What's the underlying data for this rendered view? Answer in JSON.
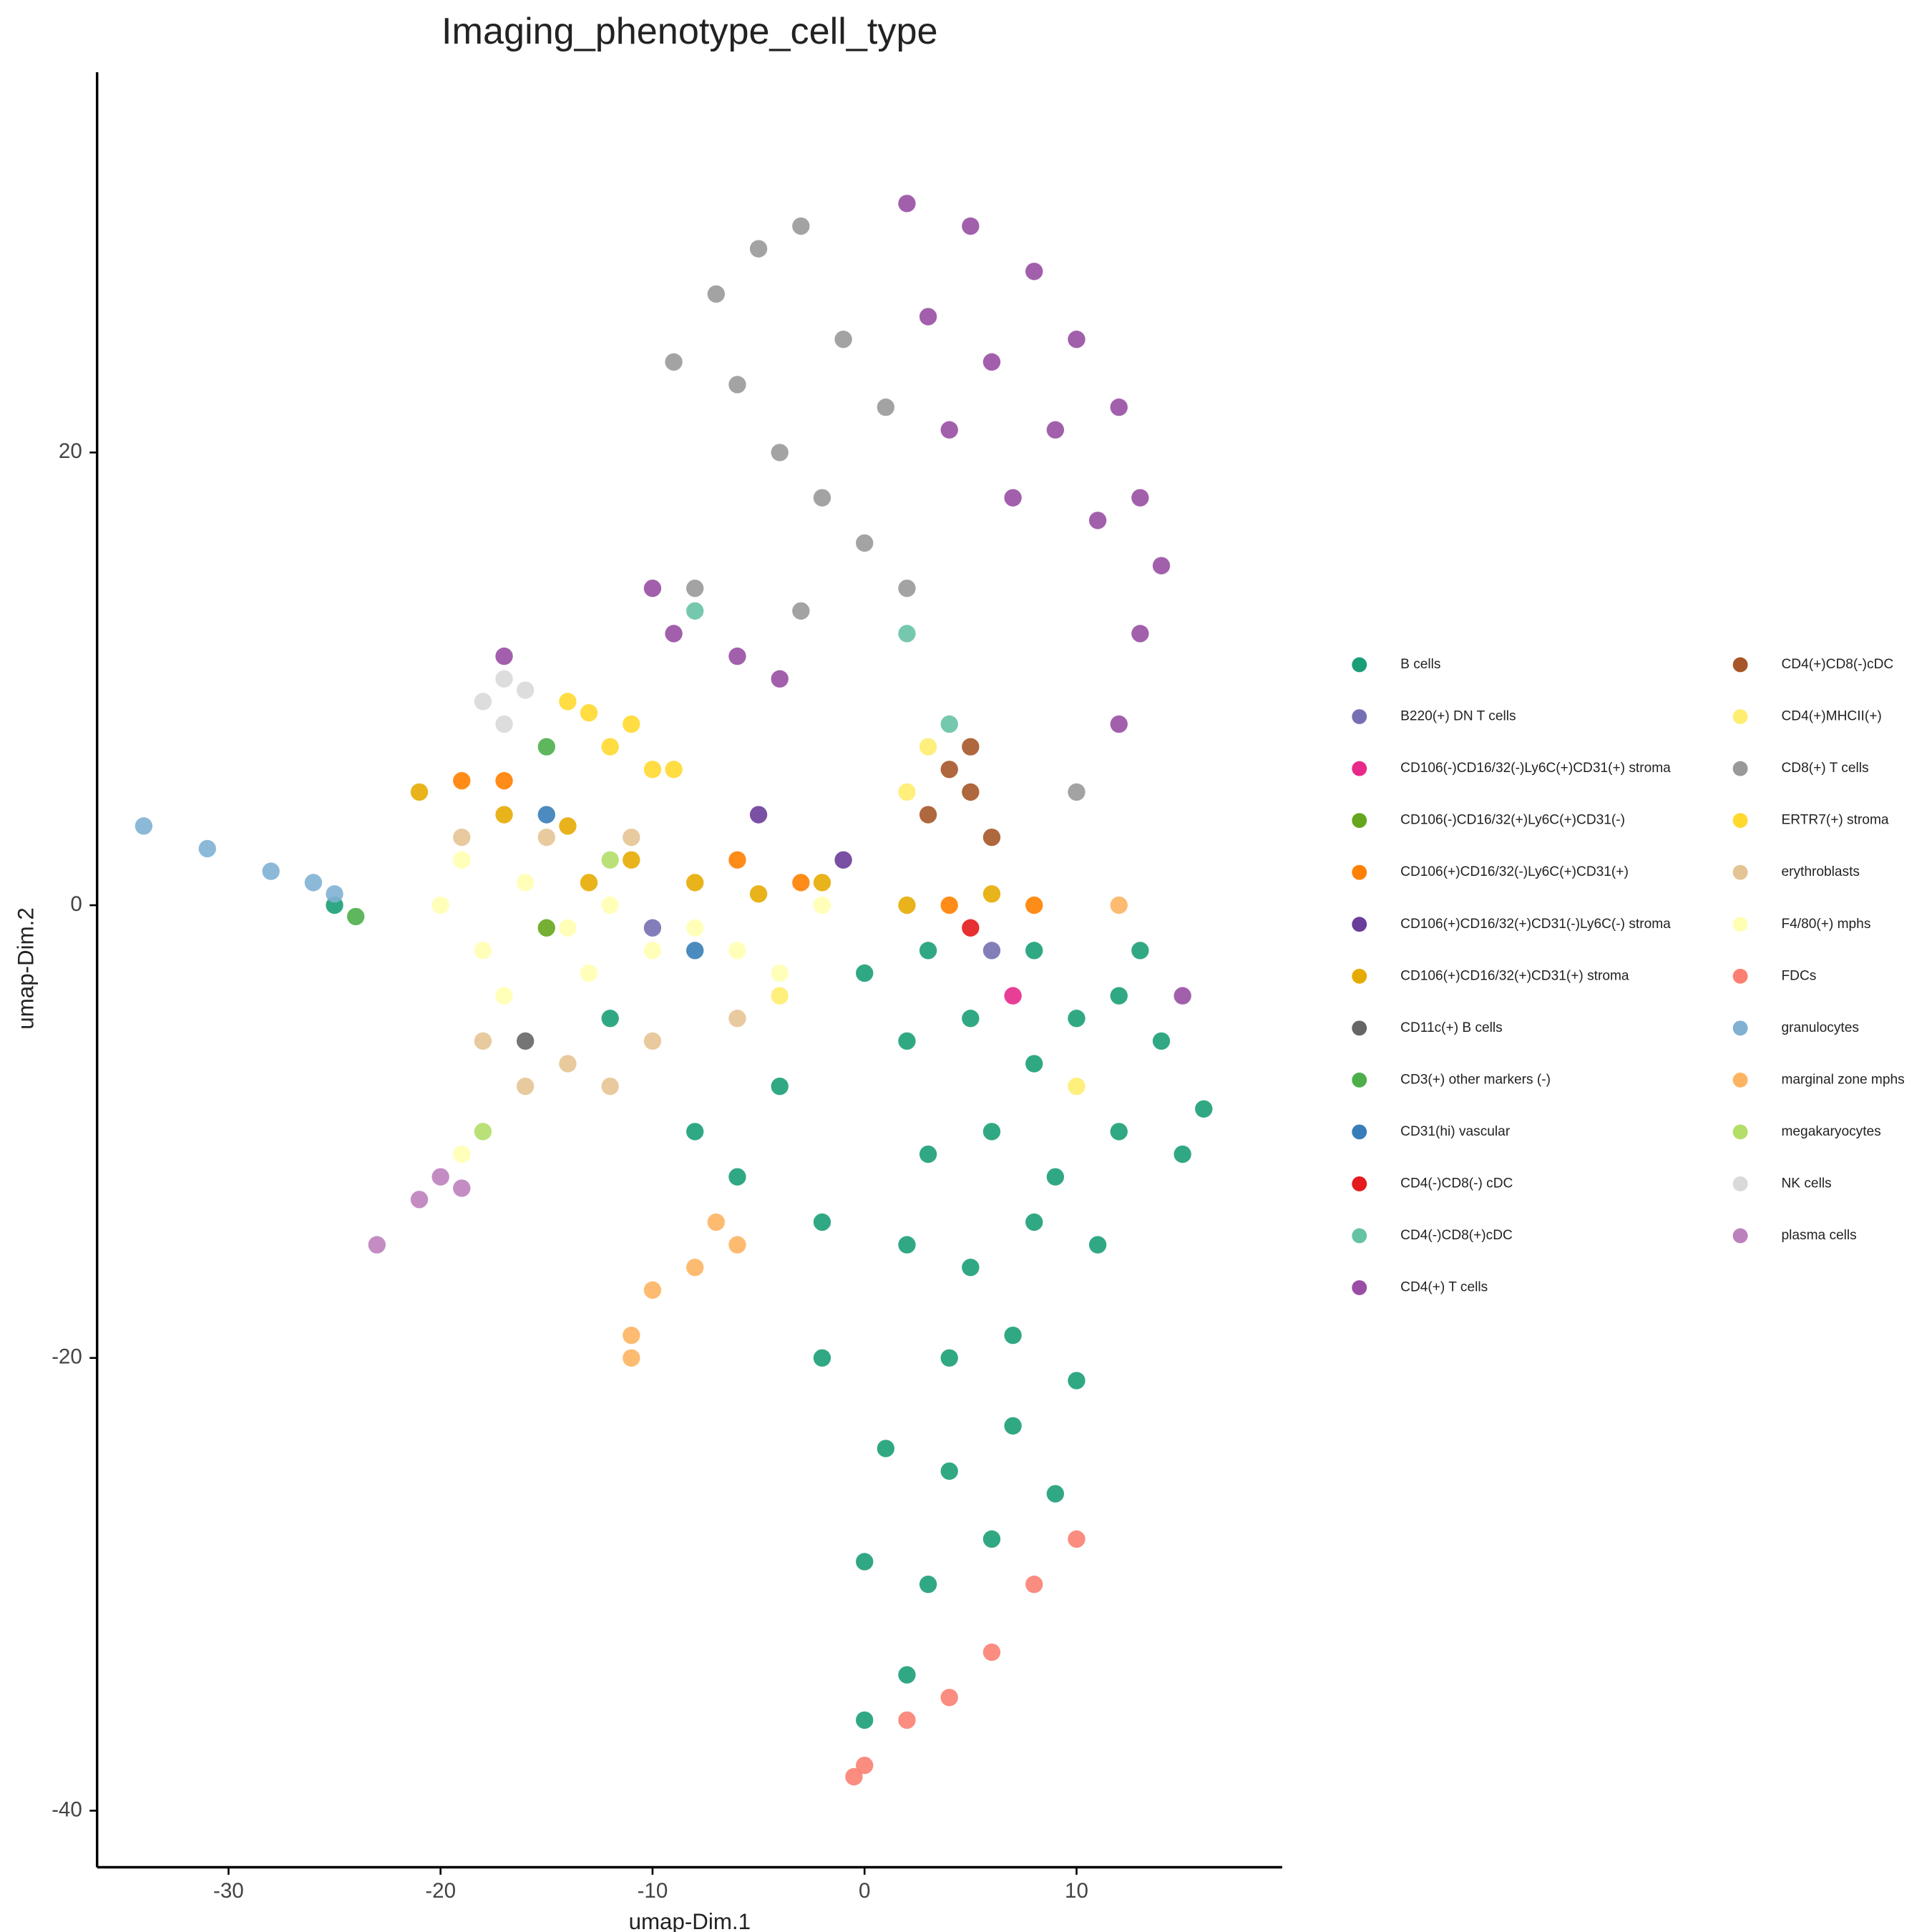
{
  "chart_data": {
    "type": "scatter",
    "title": "Imaging_phenotype_cell_type",
    "x_label": "umap-Dim.1",
    "y_label": "umap-Dim.2",
    "xlim": [
      -36.2,
      19.7
    ],
    "ylim": [
      -42.5,
      36.8
    ],
    "xticks": [
      -30,
      -20,
      -10,
      0,
      10
    ],
    "yticks": [
      -40,
      -20,
      0,
      20
    ],
    "grid": false,
    "legend": "right",
    "series": [
      {
        "name": "B cells",
        "color": "#1b9e77",
        "x": [
          2,
          5,
          8,
          10,
          12,
          14,
          16,
          3,
          6,
          9,
          12,
          15,
          -2,
          2,
          5,
          8,
          11,
          4,
          7,
          10,
          1,
          4,
          7,
          9,
          0,
          3,
          6,
          2,
          0,
          -8,
          -12,
          -4,
          0,
          -6,
          -2,
          -25,
          3,
          8,
          13
        ],
        "y": [
          -6,
          -5,
          -7,
          -5,
          -4,
          -6,
          -9,
          -11,
          -10,
          -12,
          -10,
          -11,
          -14,
          -15,
          -16,
          -14,
          -15,
          -20,
          -19,
          -21,
          -24,
          -25,
          -23,
          -26,
          -29,
          -30,
          -28,
          -34,
          -36,
          -10,
          -5,
          -8,
          -3,
          -12,
          -20,
          0,
          -2,
          -2,
          -2
        ]
      },
      {
        "name": "B220(+) DN T cells",
        "color": "#7570b3",
        "x": [
          6,
          -10
        ],
        "y": [
          -2,
          -1
        ]
      },
      {
        "name": "CD106(-)CD16/32(-)Ly6C(+)CD31(+) stroma",
        "color": "#e7298a",
        "x": [
          7
        ],
        "y": [
          -4
        ]
      },
      {
        "name": "CD106(-)CD16/32(+)Ly6C(+)CD31(-)",
        "color": "#66a61e",
        "x": [
          -15
        ],
        "y": [
          -1
        ]
      },
      {
        "name": "CD106(+)CD16/32(-)Ly6C(+)CD31(+)",
        "color": "#ff7f00",
        "x": [
          -19,
          -17,
          -6,
          -3,
          4,
          8
        ],
        "y": [
          5.5,
          5.5,
          2,
          1,
          0,
          0
        ]
      },
      {
        "name": "CD106(+)CD16/32(+)CD31(-)Ly6C(-) stroma",
        "color": "#6a3d9a",
        "x": [
          -5,
          -1
        ],
        "y": [
          4,
          2
        ]
      },
      {
        "name": "CD106(+)CD16/32(+)CD31(+) stroma",
        "color": "#e6ab02",
        "x": [
          -17,
          -14,
          -11,
          -8,
          -5,
          -2,
          2,
          6,
          -13,
          -21
        ],
        "y": [
          4,
          3.5,
          2,
          1,
          0.5,
          1,
          0,
          0.5,
          1,
          5
        ]
      },
      {
        "name": "CD11c(+) B cells",
        "color": "#666666",
        "x": [
          -16
        ],
        "y": [
          -6
        ]
      },
      {
        "name": "CD3(+) other markers (-)",
        "color": "#4daf4a",
        "x": [
          -24,
          -15
        ],
        "y": [
          -0.5,
          7
        ]
      },
      {
        "name": "CD31(hi) vascular",
        "color": "#377eb8",
        "x": [
          -15,
          -8
        ],
        "y": [
          4,
          -2
        ]
      },
      {
        "name": "CD4(-)CD8(-) cDC",
        "color": "#e41a1c",
        "x": [
          5
        ],
        "y": [
          -1
        ]
      },
      {
        "name": "CD4(-)CD8(+)cDC",
        "color": "#66c2a5",
        "x": [
          2,
          4,
          -8
        ],
        "y": [
          12,
          8,
          13
        ]
      },
      {
        "name": "CD4(+) T cells",
        "color": "#984ea3",
        "x": [
          2,
          5,
          8,
          10,
          12,
          13,
          14,
          3,
          6,
          9,
          11,
          13,
          7,
          4,
          12,
          -9,
          -6,
          -4,
          -10,
          -17,
          15
        ],
        "y": [
          31,
          30,
          28,
          25,
          22,
          18,
          15,
          26,
          24,
          21,
          17,
          12,
          18,
          21,
          8,
          12,
          11,
          10,
          14,
          11,
          -4
        ]
      },
      {
        "name": "CD4(+)CD8(-)cDC",
        "color": "#a65628",
        "x": [
          4,
          5,
          6,
          5,
          3
        ],
        "y": [
          6,
          5,
          3,
          7,
          4
        ]
      },
      {
        "name": "CD4(+)MHCII(+)",
        "color": "#ffed6f",
        "x": [
          3,
          2,
          -4,
          10
        ],
        "y": [
          7,
          5,
          -4,
          -8
        ]
      },
      {
        "name": "CD8(+) T cells",
        "color": "#999999",
        "x": [
          -7,
          -5,
          -3,
          -6,
          -4,
          -2,
          0,
          1,
          -1,
          -8,
          -3,
          2,
          10,
          -9
        ],
        "y": [
          27,
          29,
          30,
          23,
          20,
          18,
          16,
          22,
          25,
          14,
          13,
          14,
          5,
          24
        ]
      },
      {
        "name": "ERTR7(+) stroma",
        "color": "#ffd92f",
        "x": [
          -14,
          -12,
          -10,
          -13,
          -9,
          -11
        ],
        "y": [
          9,
          7,
          6,
          8.5,
          6,
          8
        ]
      },
      {
        "name": "erythroblasts",
        "color": "#e5c494",
        "x": [
          -18,
          -16,
          -14,
          -12,
          -10,
          -19,
          -15,
          -11,
          -6
        ],
        "y": [
          -6,
          -8,
          -7,
          -8,
          -6,
          3,
          3,
          3,
          -5
        ]
      },
      {
        "name": "F4/80(+) mphs",
        "color": "#ffffb3",
        "x": [
          -20,
          -18,
          -16,
          -14,
          -12,
          -10,
          -8,
          -6,
          -17,
          -13,
          -19,
          -4,
          -19,
          -2
        ],
        "y": [
          0,
          -2,
          1,
          -1,
          0,
          -2,
          -1,
          -2,
          -4,
          -3,
          2,
          -3,
          -11,
          0
        ]
      },
      {
        "name": "FDCs",
        "color": "#fb8072",
        "x": [
          0,
          2,
          4,
          6,
          8,
          10,
          -0.5
        ],
        "y": [
          -38,
          -36,
          -35,
          -33,
          -30,
          -28,
          -38.5
        ]
      },
      {
        "name": "granulocytes",
        "color": "#80b1d3",
        "x": [
          -34,
          -31,
          -28,
          -26,
          -25
        ],
        "y": [
          3.5,
          2.5,
          1.5,
          1,
          0.5
        ]
      },
      {
        "name": "marginal zone mphs",
        "color": "#fdb462",
        "x": [
          -11,
          -10,
          -8,
          -7,
          -6,
          -11,
          12
        ],
        "y": [
          -19,
          -17,
          -16,
          -14,
          -15,
          -20,
          0
        ]
      },
      {
        "name": "megakaryocytes",
        "color": "#b3de69",
        "x": [
          -18,
          -12
        ],
        "y": [
          -10,
          2
        ]
      },
      {
        "name": "NK cells",
        "color": "#d9d9d9",
        "x": [
          -18,
          -17,
          -16,
          -17
        ],
        "y": [
          9,
          10,
          9.5,
          8
        ]
      },
      {
        "name": "plasma cells",
        "color": "#bc80bd",
        "x": [
          -23,
          -21,
          -20,
          -19
        ],
        "y": [
          -15,
          -13,
          -12,
          -12.5
        ]
      }
    ]
  }
}
